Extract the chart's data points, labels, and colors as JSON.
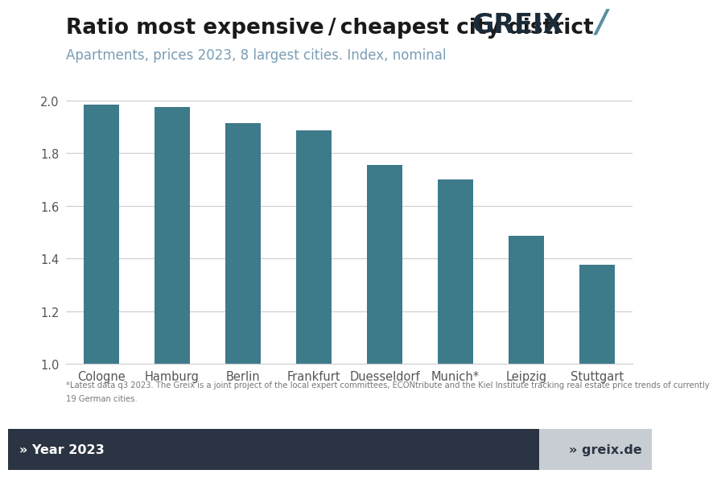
{
  "title": "Ratio most expensive / cheapest city district",
  "subtitle": "Apartments, prices 2023, 8 largest cities. Index, nominal",
  "categories": [
    "Cologne",
    "Hamburg",
    "Berlin",
    "Frankfurt",
    "Duesseldorf",
    "Munich*",
    "Leipzig",
    "Stuttgart"
  ],
  "values": [
    1.985,
    1.975,
    1.915,
    1.885,
    1.755,
    1.7,
    1.485,
    1.375
  ],
  "bar_color": "#3d7a8a",
  "ylim": [
    1.0,
    2.1
  ],
  "yticks": [
    1.0,
    1.2,
    1.4,
    1.6,
    1.8,
    2.0
  ],
  "title_fontsize": 19,
  "subtitle_fontsize": 12,
  "subtitle_color": "#7a9db5",
  "background_color": "#ffffff",
  "grid_color": "#cccccc",
  "tick_color": "#555555",
  "footnote_line1": "*Latest data q3 2023. The Greix is a joint project of the local expert committees, ECONtribute and the Kiel Institute tracking real estate price trends of currently",
  "footnote_line2": "19 German cities.",
  "footer_left": "» Year 2023",
  "footer_right": "» greix.de",
  "footer_bg": "#2b3442",
  "footer_right_bg": "#c8cdd4",
  "logo_text": "GREIX",
  "logo_slash": "/",
  "logo_color": "#1c2b3a",
  "logo_slash_color": "#5a8fa0"
}
